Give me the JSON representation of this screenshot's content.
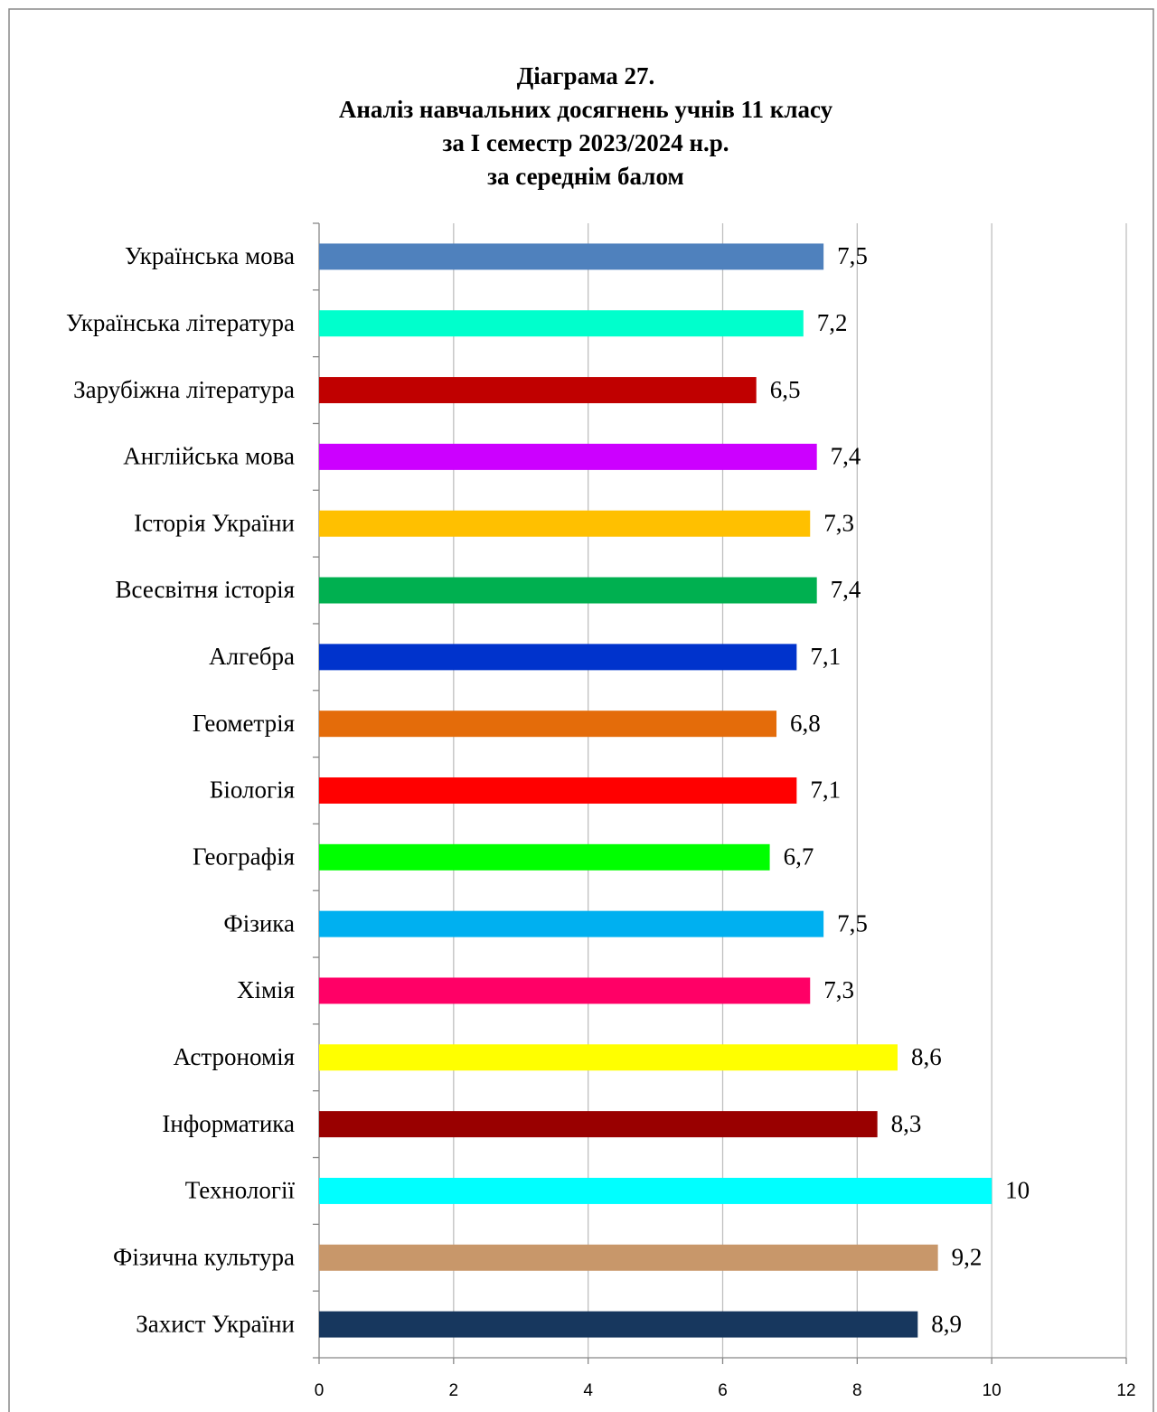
{
  "chart_data": {
    "type": "barh",
    "title": [
      "Діаграма  27.",
      "Аналіз навчальних досягнень учнів 11   класу",
      "за І семестр 2023/2024 н.р.",
      "за  середнім  балом"
    ],
    "categories": [
      "Українська мова",
      "Українська література",
      "Зарубіжна література",
      "Англійська мова",
      "Історія України",
      "Всесвітня історія",
      "Алгебра",
      "Геометрія",
      "Біологія",
      "Географія",
      "Фізика",
      "Хімія",
      "Астрономія",
      "Інформатика",
      "Технології",
      "Фізична культура",
      "Захист України"
    ],
    "values": [
      7.5,
      7.2,
      6.5,
      7.4,
      7.3,
      7.4,
      7.1,
      6.8,
      7.1,
      6.7,
      7.5,
      7.3,
      8.6,
      8.3,
      10,
      9.2,
      8.9
    ],
    "value_labels": [
      "7,5",
      "7,2",
      "6,5",
      "7,4",
      "7,3",
      "7,4",
      "7,1",
      "6,8",
      "7,1",
      "6,7",
      "7,5",
      "7,3",
      "8,6",
      "8,3",
      "10",
      "9,2",
      "8,9"
    ],
    "colors": [
      "#4f81bd",
      "#00ffcc",
      "#c00000",
      "#cc00ff",
      "#ffc000",
      "#00b050",
      "#0033cc",
      "#e46c0a",
      "#ff0000",
      "#00ff00",
      "#00b0f0",
      "#ff0066",
      "#ffff00",
      "#990000",
      "#00ffff",
      "#c8976a",
      "#17375e"
    ],
    "xlim": [
      0,
      12
    ],
    "xticks": [
      0,
      2,
      4,
      6,
      8,
      10,
      12
    ],
    "grid": true
  }
}
